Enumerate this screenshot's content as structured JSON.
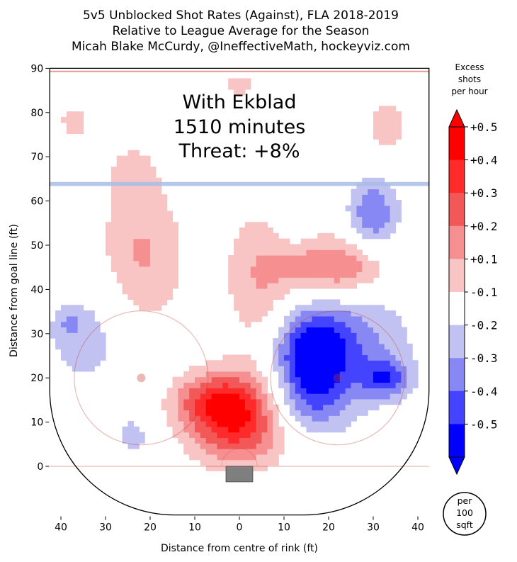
{
  "chart_data": {
    "type": "heatmap",
    "title_lines": [
      "5v5 Unblocked Shot Rates (Against), FLA 2018-2019",
      "Relative to League Average for the Season",
      "Micah Blake McCurdy, @IneffectiveMath, hockeyviz.com"
    ],
    "xlabel": "Distance from centre of rink (ft)",
    "ylabel": "Distance from goal line (ft)",
    "x_ticks": [
      40,
      30,
      20,
      10,
      0,
      10,
      20,
      30,
      40
    ],
    "y_ticks": [
      0,
      10,
      20,
      30,
      40,
      50,
      60,
      70,
      80,
      90
    ],
    "xlim": [
      -42.5,
      42.5
    ],
    "ylim": [
      -11,
      90
    ],
    "annotation": [
      "With Ekblad",
      "1510 minutes",
      "Threat: +8%"
    ],
    "colorbar": {
      "title": [
        "Excess",
        "shots",
        "per hour"
      ],
      "ticks": [
        "+0.5",
        "+0.4",
        "+0.3",
        "+0.2",
        "+0.1",
        "-0.1",
        "-0.2",
        "-0.3",
        "-0.4",
        "-0.5"
      ],
      "levels": [
        -0.5,
        -0.4,
        -0.3,
        -0.2,
        -0.1,
        0.1,
        0.2,
        0.3,
        0.4,
        0.5
      ],
      "colors": [
        "#0000ff",
        "#4444ff",
        "#8888f5",
        "#c2c2f2",
        "#ffffff",
        "#f8c4c4",
        "#f69090",
        "#f25858",
        "#ff2a2a",
        "#ff0000"
      ]
    },
    "units_note": [
      "per",
      "100",
      "sqft"
    ],
    "blobs": [
      {
        "cx": 0,
        "cy": 11,
        "rx": 8,
        "ry": 7,
        "peak": 0.55
      },
      {
        "cx": -7,
        "cy": 15,
        "rx": 6,
        "ry": 4,
        "peak": 0.2
      },
      {
        "cx": -22,
        "cy": 47,
        "rx": 7,
        "ry": 12,
        "peak": 0.22
      },
      {
        "cx": -24,
        "cy": 66,
        "rx": 4,
        "ry": 5,
        "peak": 0.12
      },
      {
        "cx": 5,
        "cy": 42,
        "rx": 6,
        "ry": 12,
        "peak": 0.2
      },
      {
        "cx": 22,
        "cy": 45,
        "rx": 8,
        "ry": 5,
        "peak": 0.35
      },
      {
        "cx": 33,
        "cy": 77,
        "rx": 4,
        "ry": 5,
        "peak": 0.15
      },
      {
        "cx": -37,
        "cy": 78,
        "rx": 4,
        "ry": 4,
        "peak": 0.12
      },
      {
        "cx": 0,
        "cy": 86,
        "rx": 4,
        "ry": 3,
        "peak": 0.12
      },
      {
        "cx": 16,
        "cy": 24,
        "rx": 6,
        "ry": 8,
        "peak": -0.45
      },
      {
        "cx": 25,
        "cy": 28,
        "rx": 10,
        "ry": 10,
        "peak": -0.22
      },
      {
        "cx": 30,
        "cy": 57,
        "rx": 4,
        "ry": 6,
        "peak": -0.3
      },
      {
        "cx": 33,
        "cy": 20,
        "rx": 4,
        "ry": 3,
        "peak": -0.3
      },
      {
        "cx": 12,
        "cy": 12,
        "rx": 8,
        "ry": 5,
        "peak": -0.15
      },
      {
        "cx": 12,
        "cy": 57,
        "rx": 3,
        "ry": 5,
        "peak": -0.12
      },
      {
        "cx": -34,
        "cy": 30,
        "rx": 8,
        "ry": 10,
        "peak": -0.15
      },
      {
        "cx": -24,
        "cy": 7,
        "rx": 3,
        "ry": 3,
        "peak": -0.15
      },
      {
        "cx": -38,
        "cy": 32,
        "rx": 2,
        "ry": 2,
        "peak": -0.12
      }
    ]
  },
  "colors": {
    "rink_line": "#c0392b",
    "blue_line": "#a8bde6",
    "net": "#7f7f7f"
  }
}
